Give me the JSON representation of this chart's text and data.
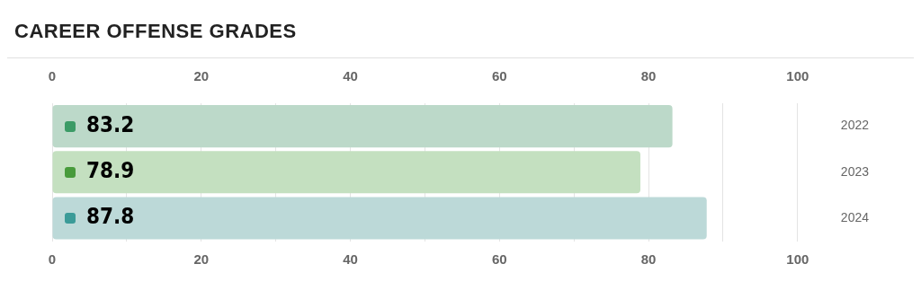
{
  "chart_data": {
    "type": "bar",
    "orientation": "horizontal",
    "title": "CAREER OFFENSE GRADES",
    "categories": [
      "2022",
      "2023",
      "2024"
    ],
    "values": [
      83.2,
      78.9,
      87.8
    ],
    "colors": [
      "#bcd9c9",
      "#c4e0c0",
      "#bcd9d8"
    ],
    "xlim": [
      0,
      100
    ],
    "xticks": [
      0,
      {
        "value": 10,
        "label": null
      },
      20,
      {
        "value": 30,
        "label": null
      },
      40,
      {
        "value": 50,
        "label": null
      },
      60,
      {
        "value": 70,
        "label": null
      },
      80,
      {
        "value": 90,
        "label": null
      },
      100
    ],
    "x2lim": [
      0,
      100
    ],
    "x2ticks": [
      0,
      20,
      40,
      60,
      80,
      100
    ],
    "grid": "x",
    "data_labels": true,
    "legend": false
  }
}
